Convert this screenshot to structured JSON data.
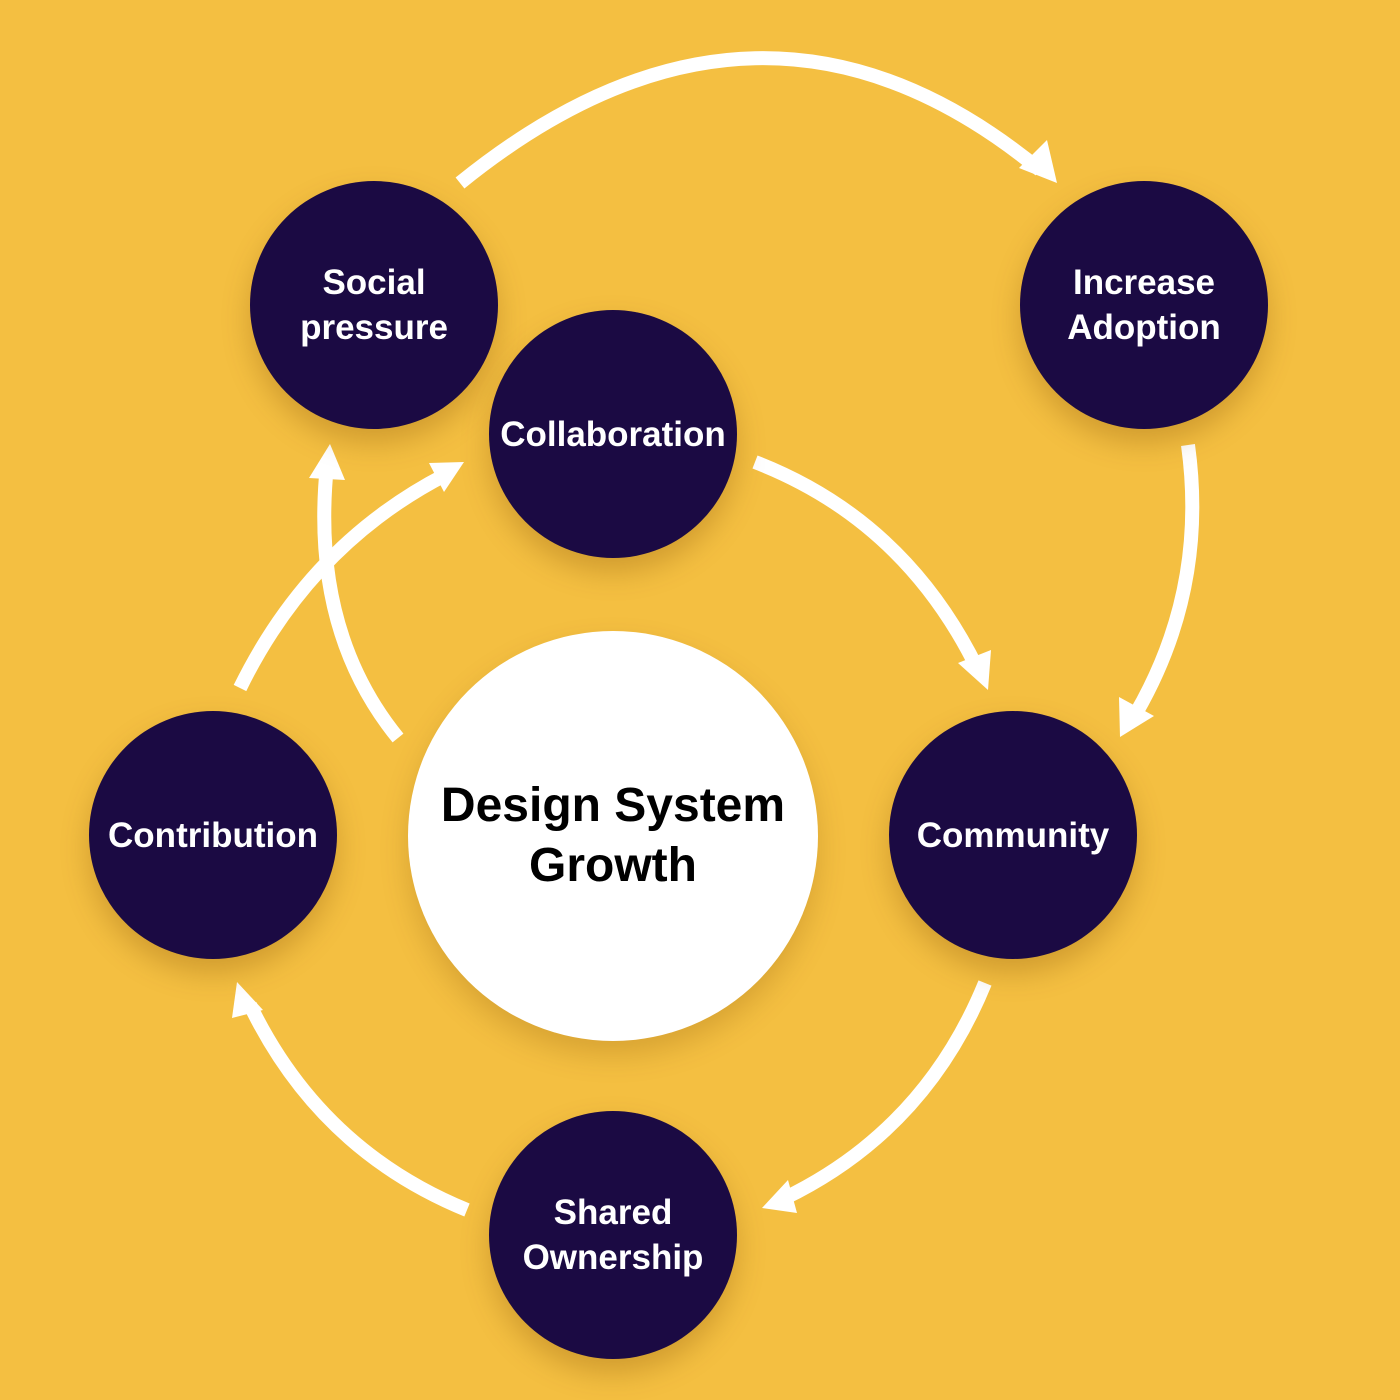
{
  "colors": {
    "background": "#F4BF41",
    "node_fill": "#1B0A43",
    "node_text": "#FFFFFF",
    "center_fill": "#FFFFFF",
    "center_text": "#000000",
    "arrow": "#FFFFFF"
  },
  "center": {
    "line1": "Design System",
    "line2": "Growth"
  },
  "nodes": {
    "social_pressure": {
      "line1": "Social",
      "line2": "pressure"
    },
    "increase_adoption": {
      "line1": "Increase",
      "line2": "Adoption"
    },
    "collaboration": {
      "line1": "Collaboration"
    },
    "community": {
      "line1": "Community"
    },
    "shared_ownership": {
      "line1": "Shared",
      "line2": "Ownership"
    },
    "contribution": {
      "line1": "Contribution"
    }
  },
  "edges": [
    {
      "from": "Social pressure",
      "to": "Increase Adoption"
    },
    {
      "from": "Increase Adoption",
      "to": "Community"
    },
    {
      "from": "Collaboration",
      "to": "Community"
    },
    {
      "from": "Community",
      "to": "Shared Ownership"
    },
    {
      "from": "Shared Ownership",
      "to": "Contribution"
    },
    {
      "from": "Contribution",
      "to": "Collaboration"
    },
    {
      "from": "Design System Growth",
      "to": "Social pressure"
    }
  ]
}
